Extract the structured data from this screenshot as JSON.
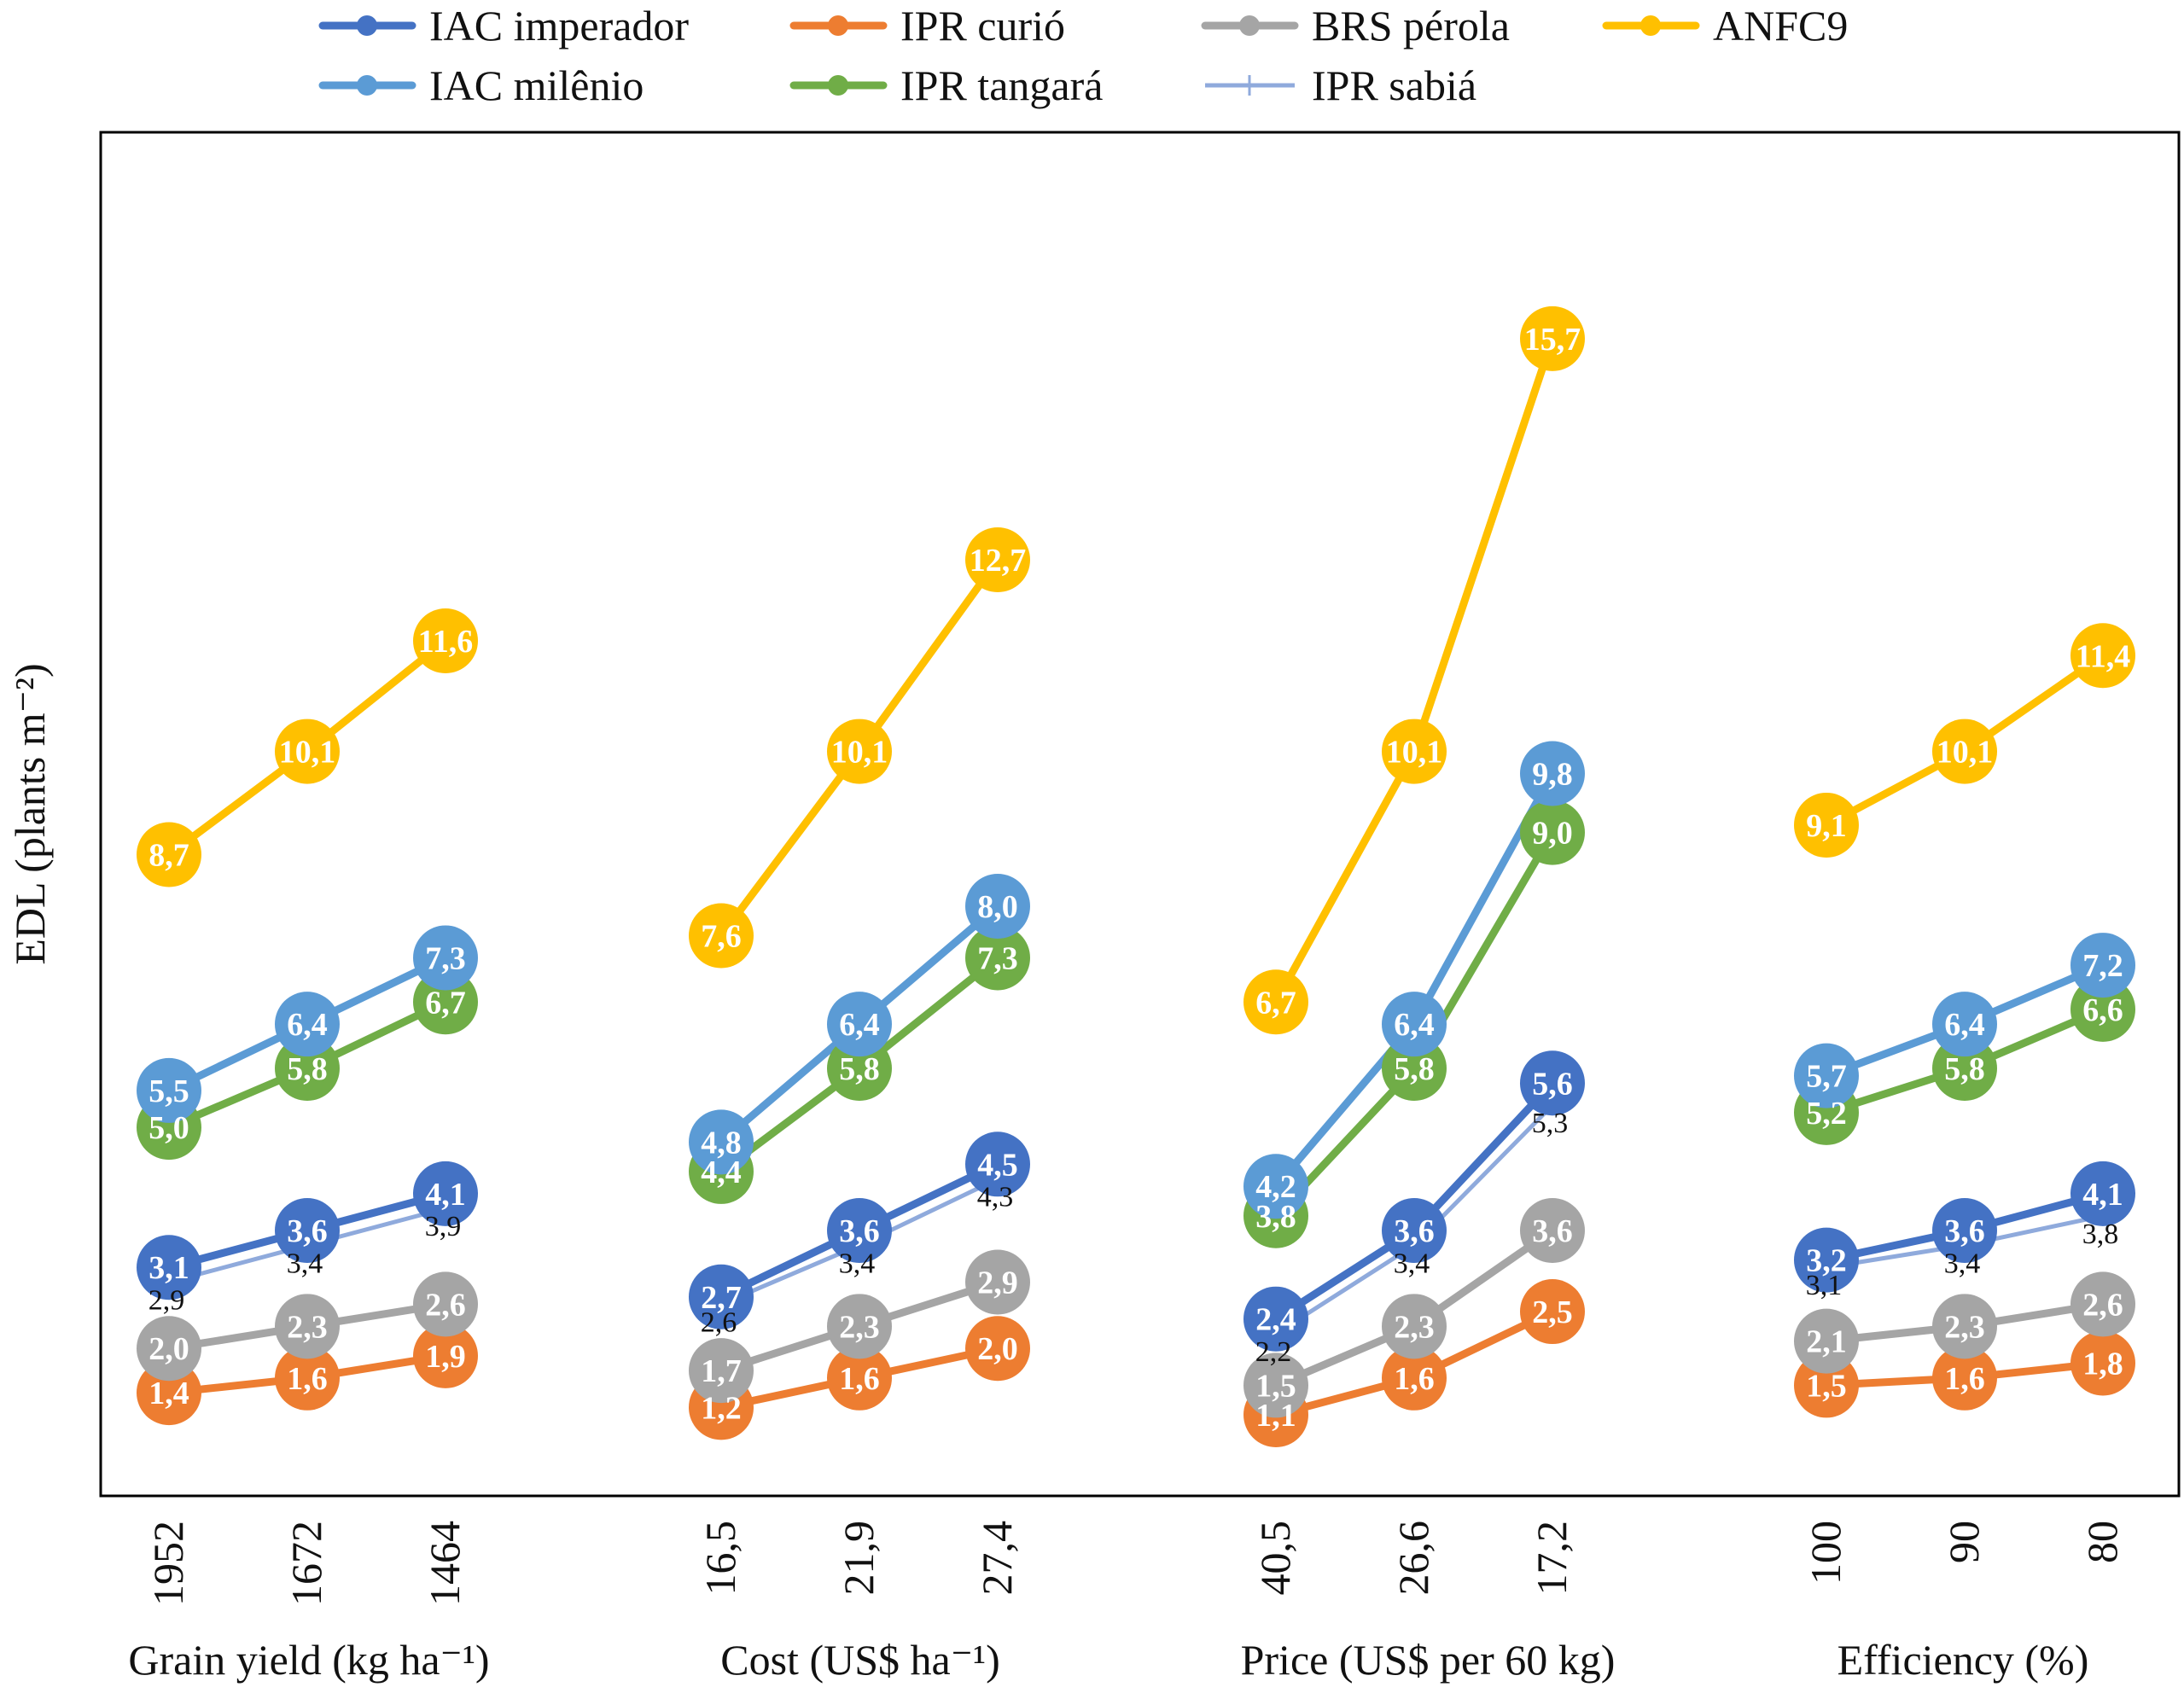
{
  "chart_data": {
    "type": "line",
    "ylabel": "EDL (plants m⁻²)",
    "ylim": [
      0,
      18.5
    ],
    "grid": false,
    "legend_position": "top",
    "groups": [
      {
        "label": "Grain yield (kg ha⁻¹)",
        "ticks": [
          "1952",
          "1672",
          "1464"
        ]
      },
      {
        "label": "Cost (US$ ha⁻¹)",
        "ticks": [
          "16,5",
          "21,9",
          "27,4"
        ]
      },
      {
        "label": "Price (US$ per 60 kg)",
        "ticks": [
          "40,5",
          "26,6",
          "17,2"
        ]
      },
      {
        "label": "Efficiency (%)",
        "ticks": [
          "100",
          "90",
          "80"
        ]
      }
    ],
    "series": [
      {
        "name": "IAC imperador",
        "color": "#4472C4",
        "marker": "circle",
        "label_color": "white",
        "values": [
          [
            3.1,
            3.6,
            4.1
          ],
          [
            2.7,
            3.6,
            4.5
          ],
          [
            2.4,
            3.6,
            5.6
          ],
          [
            3.2,
            3.6,
            4.1
          ]
        ],
        "labels": [
          [
            "3,1",
            "3,6",
            "4,1"
          ],
          [
            "2,7",
            "3,6",
            "4,5"
          ],
          [
            "2,4",
            "3,6",
            "5,6"
          ],
          [
            "3,2",
            "3,6",
            "4,1"
          ]
        ]
      },
      {
        "name": "IAC milênio",
        "color": "#5B9BD5",
        "marker": "circle",
        "label_color": "white",
        "values": [
          [
            5.5,
            6.4,
            7.3
          ],
          [
            4.8,
            6.4,
            8.0
          ],
          [
            4.2,
            6.4,
            9.8
          ],
          [
            5.7,
            6.4,
            7.2
          ]
        ],
        "labels": [
          [
            "5,5",
            "6,4",
            "7,3"
          ],
          [
            "4,8",
            "6,4",
            "8,0"
          ],
          [
            "4,2",
            "6,4",
            "9,8"
          ],
          [
            "5,7",
            "6,4",
            "7,2"
          ]
        ]
      },
      {
        "name": "IPR curió",
        "color": "#ED7D31",
        "marker": "circle",
        "label_color": "white",
        "values": [
          [
            1.4,
            1.6,
            1.9
          ],
          [
            1.2,
            1.6,
            2.0
          ],
          [
            1.1,
            1.6,
            2.5
          ],
          [
            1.5,
            1.6,
            1.8
          ]
        ],
        "labels": [
          [
            "1,4",
            "1,6",
            "1,9"
          ],
          [
            "1,2",
            "1,6",
            "2,0"
          ],
          [
            "1,1",
            "1,6",
            "2,5"
          ],
          [
            "1,5",
            "1,6",
            "1,8"
          ]
        ]
      },
      {
        "name": "IPR tangará",
        "color": "#70AD47",
        "marker": "circle",
        "label_color": "white",
        "values": [
          [
            5.0,
            5.8,
            6.7
          ],
          [
            4.4,
            5.8,
            7.3
          ],
          [
            3.8,
            5.8,
            9.0
          ],
          [
            5.2,
            5.8,
            6.6
          ]
        ],
        "labels": [
          [
            "5,0",
            "5,8",
            "6,7"
          ],
          [
            "4,4",
            "5,8",
            "7,3"
          ],
          [
            "3,8",
            "5,8",
            "9,0"
          ],
          [
            "5,2",
            "5,8",
            "6,6"
          ]
        ]
      },
      {
        "name": "BRS pérola",
        "color": "#A5A5A5",
        "marker": "circle",
        "label_color": "white",
        "values": [
          [
            2.0,
            2.3,
            2.6
          ],
          [
            1.7,
            2.3,
            2.9
          ],
          [
            1.5,
            2.3,
            3.6
          ],
          [
            2.1,
            2.3,
            2.6
          ]
        ],
        "labels": [
          [
            "2,0",
            "2,3",
            "2,6"
          ],
          [
            "1,7",
            "2,3",
            "2,9"
          ],
          [
            "1,5",
            "2,3",
            "3,6"
          ],
          [
            "2,1",
            "2,3",
            "2,6"
          ]
        ]
      },
      {
        "name": "IPR sabiá",
        "color": "#8FAADC",
        "marker": "plus",
        "label_color": "black",
        "values": [
          [
            2.9,
            3.4,
            3.9
          ],
          [
            2.6,
            3.4,
            4.3
          ],
          [
            2.2,
            3.4,
            5.3
          ],
          [
            3.1,
            3.4,
            3.8
          ]
        ],
        "labels": [
          [
            "2,9",
            "3,4",
            "3,9"
          ],
          [
            "2,6",
            "3,4",
            "4,3"
          ],
          [
            "2,2",
            "3,4",
            "5,3"
          ],
          [
            "3,1",
            "3,4",
            "3,8"
          ]
        ]
      },
      {
        "name": "ANFC9",
        "color": "#FFC000",
        "marker": "circle",
        "label_color": "white",
        "values": [
          [
            8.7,
            10.1,
            11.6
          ],
          [
            7.6,
            10.1,
            12.7
          ],
          [
            6.7,
            10.1,
            15.7
          ],
          [
            9.1,
            10.1,
            11.4
          ]
        ],
        "labels": [
          [
            "8,7",
            "10,1",
            "11,6"
          ],
          [
            "7,6",
            "10,1",
            "12,7"
          ],
          [
            "6,7",
            "10,1",
            "15,7"
          ],
          [
            "9,1",
            "10,1",
            "11,4"
          ]
        ]
      }
    ]
  }
}
